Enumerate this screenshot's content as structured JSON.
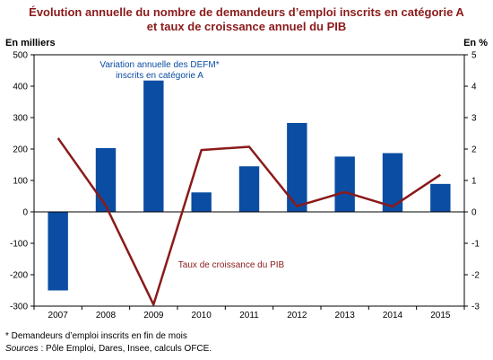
{
  "title": {
    "line1": "Évolution annuelle du nombre de demandeurs d’emploi inscrits en catégorie A",
    "line2": "et taux de croissance annuel du PIB"
  },
  "units": {
    "left": "En milliers",
    "right": "En %"
  },
  "footnote": "* Demandeurs d’emploi inscrits en fin de mois",
  "sources": {
    "label": "Sources",
    "text": " : Pôle Emploi, Dares, Insee, calculs OFCE."
  },
  "colors": {
    "bar": "#0a4da2",
    "line": "#8b1a1a",
    "title": "#8b1a1a"
  },
  "chart_data": {
    "type": "bar",
    "categories": [
      "2007",
      "2008",
      "2009",
      "2010",
      "2011",
      "2012",
      "2013",
      "2014",
      "2015"
    ],
    "series": [
      {
        "name": "Variation annuelle des DEFM* inscrits en catégorie A",
        "label_lines": [
          "Variation annuelle des DEFM*",
          "inscrits en catégorie A"
        ],
        "type": "bar",
        "axis": "left",
        "color": "#0a4da2",
        "values": [
          -250,
          203,
          418,
          62,
          145,
          283,
          176,
          187,
          89
        ]
      },
      {
        "name": "Taux de croissance du PIB",
        "type": "line",
        "axis": "right",
        "color": "#8b1a1a",
        "values": [
          2.35,
          0.2,
          -2.95,
          1.97,
          2.07,
          0.18,
          0.63,
          0.17,
          1.18
        ]
      }
    ],
    "ylim_left": [
      -300,
      500
    ],
    "yticks_left": [
      "-300",
      "-200",
      "-100",
      "0",
      "100",
      "200",
      "300",
      "400",
      "500"
    ],
    "ylim_right": [
      -3,
      5
    ],
    "yticks_right": [
      "-3",
      "-2",
      "-1",
      "0",
      "1",
      "2",
      "3",
      "4",
      "5"
    ],
    "ylabel_left": "En milliers",
    "ylabel_right": "En %",
    "grid": false
  }
}
